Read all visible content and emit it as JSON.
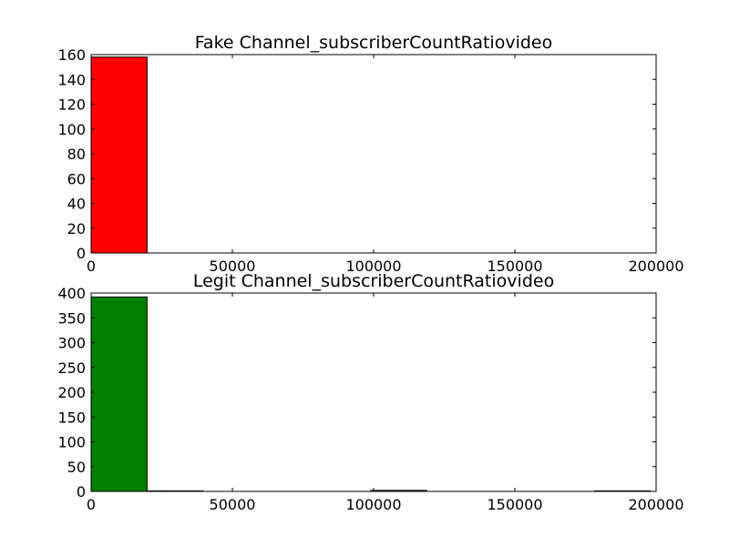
{
  "chart_data": [
    {
      "type": "bar",
      "title": "Fake Channel_subscriberCountRatiovideo",
      "xlabel": "",
      "ylabel": "",
      "xlim": [
        0,
        200000
      ],
      "ylim": [
        0,
        160
      ],
      "xticks": [
        0,
        50000,
        100000,
        150000,
        200000
      ],
      "xtick_labels": [
        "0",
        "50000",
        "100000",
        "150000",
        "200000"
      ],
      "yticks": [
        0,
        20,
        40,
        60,
        80,
        100,
        120,
        140,
        160
      ],
      "ytick_labels": [
        "0",
        "20",
        "40",
        "60",
        "80",
        "100",
        "120",
        "140",
        "160"
      ],
      "bin_edges": [
        0,
        19800,
        39600,
        59400,
        79200,
        99000,
        118800,
        138600,
        158400,
        178200,
        198000
      ],
      "values": [
        158,
        0,
        0,
        0,
        0,
        0,
        0,
        0,
        0,
        0
      ],
      "color": "#ff0000",
      "grid": false
    },
    {
      "type": "bar",
      "title": "Legit Channel_subscriberCountRatiovideo",
      "xlabel": "",
      "ylabel": "",
      "xlim": [
        0,
        200000
      ],
      "ylim": [
        0,
        400
      ],
      "xticks": [
        0,
        50000,
        100000,
        150000,
        200000
      ],
      "xtick_labels": [
        "0",
        "50000",
        "100000",
        "150000",
        "200000"
      ],
      "yticks": [
        0,
        50,
        100,
        150,
        200,
        250,
        300,
        350,
        400
      ],
      "ytick_labels": [
        "0",
        "50",
        "100",
        "150",
        "200",
        "250",
        "300",
        "350",
        "400"
      ],
      "bin_edges": [
        0,
        19800,
        39600,
        59400,
        79200,
        99000,
        118800,
        138600,
        158400,
        178200,
        198000
      ],
      "values": [
        392,
        1,
        0,
        0,
        0,
        2,
        0,
        0,
        0,
        1
      ],
      "color": "#008000",
      "grid": false
    }
  ]
}
